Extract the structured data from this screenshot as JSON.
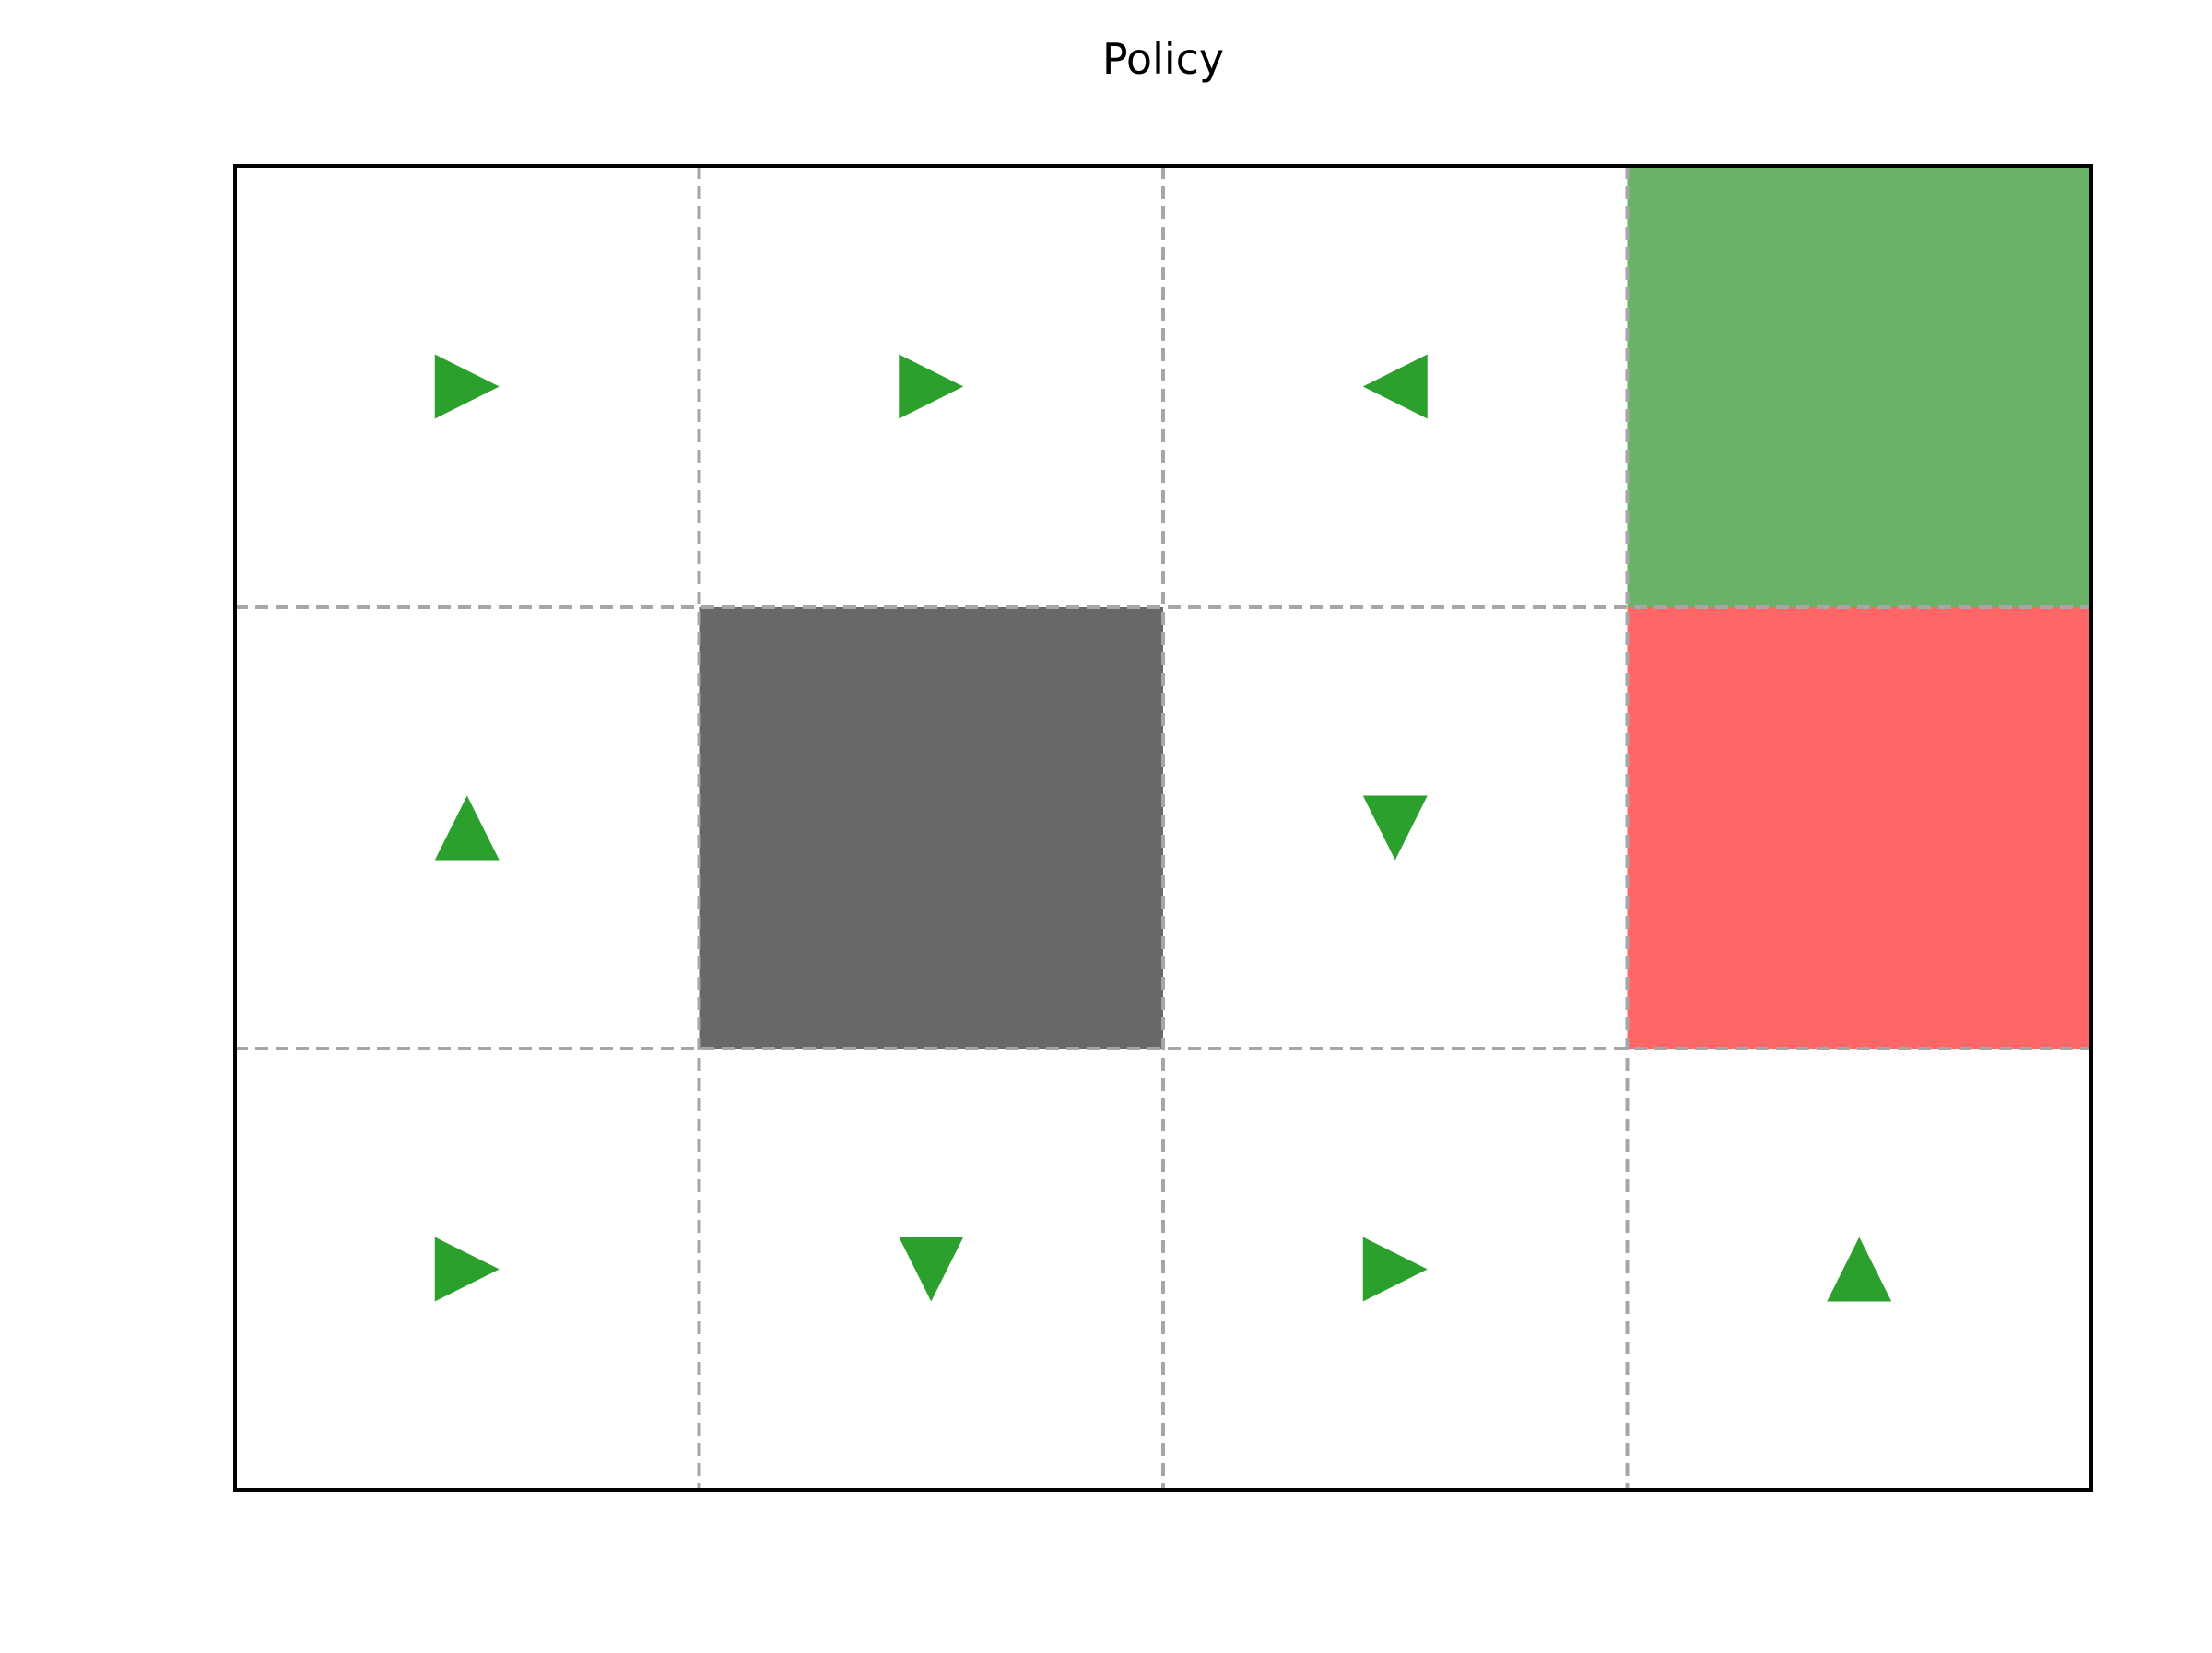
{
  "title": "Policy",
  "grid": {
    "rows": 3,
    "cols": 4,
    "cells": [
      [
        {
          "type": "action",
          "action": "right"
        },
        {
          "type": "action",
          "action": "right"
        },
        {
          "type": "action",
          "action": "left"
        },
        {
          "type": "goal"
        }
      ],
      [
        {
          "type": "action",
          "action": "up"
        },
        {
          "type": "wall"
        },
        {
          "type": "action",
          "action": "down"
        },
        {
          "type": "pit"
        }
      ],
      [
        {
          "type": "action",
          "action": "right"
        },
        {
          "type": "action",
          "action": "down"
        },
        {
          "type": "action",
          "action": "right"
        },
        {
          "type": "action",
          "action": "up"
        }
      ]
    ]
  },
  "colors": {
    "goal": "#69b268",
    "pit": "#ff6767",
    "wall": "#686868",
    "arrow": "#2ca02c",
    "grid_line": "#a6a6a6",
    "frame": "#000000"
  }
}
